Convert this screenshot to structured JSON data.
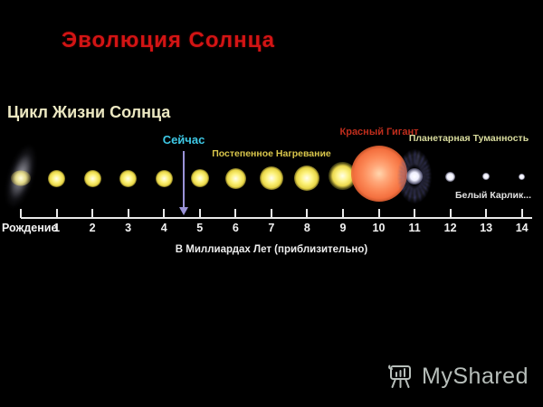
{
  "slide": {
    "title": "Эволюция Солнца"
  },
  "diagram": {
    "heading": "Цикл Жизни Солнца",
    "now_label": "Сейчас",
    "stage_labels": {
      "gradual_heating": "Постепенное Нагревание",
      "red_giant": "Красный Гигант",
      "planetary_nebula": "Планетарная Туманность",
      "white_dwarf": "Белый Карлик..."
    },
    "timeline": {
      "origin_label": "Рождение",
      "ticks": [
        "1",
        "2",
        "3",
        "4",
        "5",
        "6",
        "7",
        "8",
        "9",
        "10",
        "11",
        "12",
        "13",
        "14"
      ],
      "caption": "В Миллиардах Лет (приблизительно)",
      "now_at_billion_years": 4.55
    },
    "stages": [
      {
        "kind": "protostellar-cloud",
        "tick": 0,
        "size": 70
      },
      {
        "kind": "sun",
        "tick": 1,
        "size": 19
      },
      {
        "kind": "sun",
        "tick": 2,
        "size": 19
      },
      {
        "kind": "sun",
        "tick": 3,
        "size": 19
      },
      {
        "kind": "sun",
        "tick": 4,
        "size": 19
      },
      {
        "kind": "sun",
        "tick": 5,
        "size": 20
      },
      {
        "kind": "sun",
        "tick": 6,
        "size": 23
      },
      {
        "kind": "sun",
        "tick": 7,
        "size": 26
      },
      {
        "kind": "sun",
        "tick": 8,
        "size": 28
      },
      {
        "kind": "expanding-sun",
        "tick": 9,
        "size": 31
      },
      {
        "kind": "red-giant",
        "tick": 10,
        "size": 62
      },
      {
        "kind": "planetary-nebula",
        "tick": 11,
        "size": 50
      },
      {
        "kind": "white-dwarf",
        "tick": 12,
        "size": 11
      },
      {
        "kind": "white-dwarf",
        "tick": 13,
        "size": 8
      },
      {
        "kind": "white-dwarf",
        "tick": 14,
        "size": 7
      }
    ]
  },
  "watermark": {
    "label": "MyShared",
    "icon": "presentation-board-icon"
  },
  "colors": {
    "background": "#000000",
    "title": "#d21414",
    "heading": "#ece8c2",
    "now": "#3ec9e6",
    "gradual_heating": "#d9c64b",
    "red_giant_label": "#bf2d1c",
    "planetary_nebula_label": "#d9dc9e",
    "white_dwarf_label": "#e2e2e2",
    "axis": "#e9e9e9",
    "arrow": "#9a93d8",
    "watermark": "#b7beba"
  }
}
